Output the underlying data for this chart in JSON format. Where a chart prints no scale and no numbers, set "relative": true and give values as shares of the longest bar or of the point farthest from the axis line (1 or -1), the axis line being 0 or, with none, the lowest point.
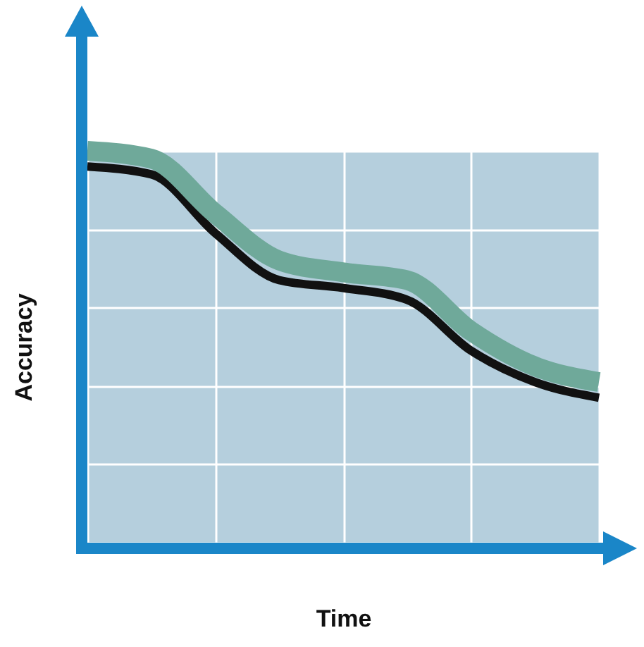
{
  "chart_data": {
    "type": "line",
    "relative": true,
    "xlabel": "Time",
    "ylabel": "Accuracy",
    "grid": true,
    "marker": "none",
    "line_style": "solid",
    "categories": [
      null,
      null,
      null,
      null,
      null,
      null,
      null,
      null,
      null
    ],
    "series": [
      {
        "color": "#111111",
        "values": [
          0.96,
          0.94,
          0.79,
          0.67,
          0.65,
          0.62,
          0.49,
          0.41,
          0.37
        ]
      },
      {
        "color": "#6fa99a",
        "values": [
          1,
          0.98,
          0.84,
          0.72,
          0.69,
          0.67,
          0.54,
          0.45,
          0.41
        ]
      }
    ]
  }
}
